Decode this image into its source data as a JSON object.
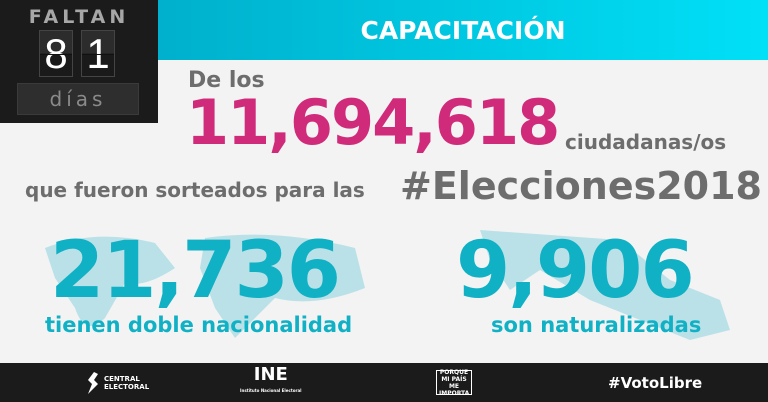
{
  "countdown": {
    "label": "FALTAN",
    "digits": [
      "8",
      "1"
    ],
    "unit": "días"
  },
  "header": {
    "title": "CAPACITACIÓN"
  },
  "intro": {
    "prefix": "De los",
    "total": "11,694,618",
    "suffix": "ciudadanas/os",
    "line2": "que fueron sorteados para las",
    "hashtag": "#Elecciones2018"
  },
  "stats": [
    {
      "value": "21,736",
      "label": "tienen doble nacionalidad"
    },
    {
      "value": "9,906",
      "label": "son naturalizadas"
    }
  ],
  "footer": {
    "logos": [
      {
        "name": "central-electoral",
        "text": "CENTRAL ELECTORAL"
      },
      {
        "name": "ine",
        "text": "INE",
        "subtext": "Instituto Nacional Electoral"
      },
      {
        "name": "porque-mi-pais-me-importa",
        "text": "PORQUE MI PAÍS ME IMPORTA"
      }
    ],
    "hashtag": "#VotoLibre"
  },
  "colors": {
    "accent_cyan": "#10b0c5",
    "accent_pink": "#d02a7a",
    "dark": "#1c1b1b",
    "text_gray": "#6d6d6d"
  }
}
